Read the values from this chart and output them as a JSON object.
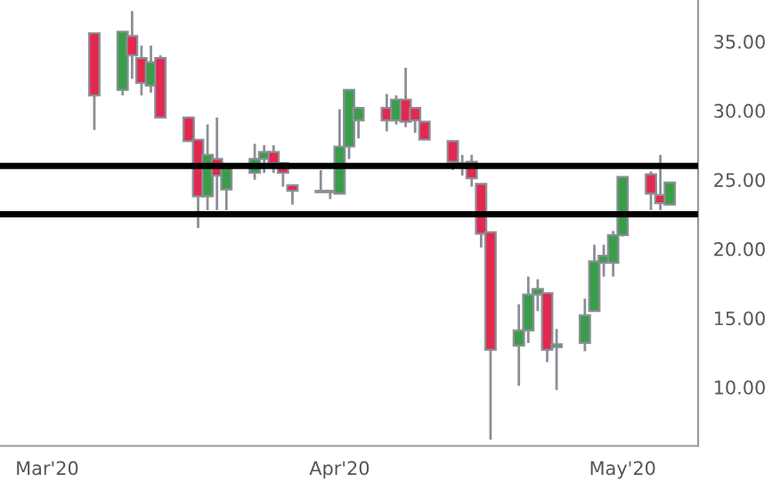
{
  "chart_data": {
    "type": "candlestick",
    "x": [
      "2020-03-06",
      "2020-03-09",
      "2020-03-10",
      "2020-03-11",
      "2020-03-12",
      "2020-03-13",
      "2020-03-16",
      "2020-03-17",
      "2020-03-18",
      "2020-03-19",
      "2020-03-20",
      "2020-03-23",
      "2020-03-24",
      "2020-03-25",
      "2020-03-26",
      "2020-03-27",
      "2020-03-30",
      "2020-03-31",
      "2020-04-01",
      "2020-04-02",
      "2020-04-03",
      "2020-04-06",
      "2020-04-07",
      "2020-04-08",
      "2020-04-09",
      "2020-04-10",
      "2020-04-13",
      "2020-04-14",
      "2020-04-15",
      "2020-04-16",
      "2020-04-17",
      "2020-04-20",
      "2020-04-21",
      "2020-04-22",
      "2020-04-23",
      "2020-04-24",
      "2020-04-27",
      "2020-04-28",
      "2020-04-29",
      "2020-04-30",
      "2020-05-01",
      "2020-05-04",
      "2020-05-05",
      "2020-05-06"
    ],
    "ohlc": [
      [
        35.6,
        35.6,
        28.6,
        31.1
      ],
      [
        31.5,
        35.7,
        31.1,
        35.7
      ],
      [
        35.4,
        37.2,
        32.3,
        34.0
      ],
      [
        33.8,
        34.7,
        31.1,
        32.0
      ],
      [
        31.8,
        34.7,
        31.3,
        33.5
      ],
      [
        33.8,
        34.0,
        29.5,
        29.5
      ],
      [
        29.5,
        29.5,
        27.8,
        27.8
      ],
      [
        27.9,
        27.9,
        21.5,
        23.8
      ],
      [
        23.8,
        29.0,
        22.8,
        26.8
      ],
      [
        26.5,
        29.5,
        22.8,
        25.3
      ],
      [
        24.3,
        26.1,
        22.8,
        26.1
      ],
      [
        25.5,
        27.6,
        25.0,
        26.5
      ],
      [
        26.5,
        27.5,
        25.5,
        27.0
      ],
      [
        27.0,
        27.5,
        25.5,
        26.2
      ],
      [
        26.2,
        26.2,
        24.5,
        25.5
      ],
      [
        24.6,
        24.6,
        23.2,
        24.2
      ],
      [
        24.1,
        25.7,
        24.1,
        24.2
      ],
      [
        24.1,
        24.2,
        23.6,
        24.2
      ],
      [
        24.0,
        30.1,
        24.0,
        27.4
      ],
      [
        27.4,
        31.5,
        26.5,
        31.5
      ],
      [
        29.3,
        30.2,
        28.0,
        30.2
      ],
      [
        30.2,
        31.2,
        28.5,
        29.3
      ],
      [
        29.3,
        31.1,
        29.0,
        30.8
      ],
      [
        30.8,
        33.1,
        28.8,
        29.2
      ],
      [
        30.2,
        30.2,
        28.4,
        29.3
      ],
      [
        29.2,
        29.2,
        27.9,
        27.9
      ],
      [
        27.8,
        27.8,
        25.7,
        26.3
      ],
      [
        26.0,
        26.8,
        25.3,
        26.2
      ],
      [
        26.3,
        26.8,
        24.5,
        25.1
      ],
      [
        24.7,
        24.7,
        20.1,
        21.1
      ],
      [
        21.2,
        21.2,
        6.2,
        12.7
      ],
      [
        13.0,
        16.0,
        10.1,
        14.1
      ],
      [
        14.1,
        18.0,
        13.2,
        16.7
      ],
      [
        16.7,
        17.8,
        15.5,
        17.1
      ],
      [
        16.8,
        16.8,
        11.8,
        12.7
      ],
      [
        12.9,
        14.2,
        9.8,
        13.1
      ],
      [
        13.2,
        16.4,
        12.6,
        15.2
      ],
      [
        15.5,
        20.3,
        15.5,
        19.1
      ],
      [
        19.0,
        20.3,
        18.0,
        19.5
      ],
      [
        19.0,
        21.3,
        18.0,
        21.0
      ],
      [
        21.0,
        25.2,
        20.9,
        25.2
      ],
      [
        25.4,
        25.6,
        22.8,
        24.0
      ],
      [
        23.9,
        26.8,
        22.8,
        23.3
      ],
      [
        23.2,
        24.8,
        23.2,
        24.8
      ]
    ],
    "colors": [
      "#e3284f",
      "#3a9d4a",
      "#e3284f",
      "#e3284f",
      "#3a9d4a",
      "#e3284f",
      "#e3284f",
      "#e3284f",
      "#3a9d4a",
      "#e3284f",
      "#3a9d4a",
      "#3a9d4a",
      "#3a9d4a",
      "#e3284f",
      "#e3284f",
      "#e3284f",
      "#3a9d4a",
      "#3a9d4a",
      "#3a9d4a",
      "#3a9d4a",
      "#3a9d4a",
      "#e3284f",
      "#3a9d4a",
      "#e3284f",
      "#e3284f",
      "#e3284f",
      "#e3284f",
      "#3a9d4a",
      "#e3284f",
      "#e3284f",
      "#e3284f",
      "#3a9d4a",
      "#3a9d4a",
      "#3a9d4a",
      "#e3284f",
      "#3a9d4a",
      "#3a9d4a",
      "#3a9d4a",
      "#3a9d4a",
      "#3a9d4a",
      "#3a9d4a",
      "#e3284f",
      "#e3284f",
      "#3a9d4a"
    ],
    "xlim": [
      "2020-02-25",
      "2020-05-09"
    ],
    "xticks": [
      {
        "value": "2020-03-01",
        "label": "Mar'20"
      },
      {
        "value": "2020-04-01",
        "label": "Apr'20"
      },
      {
        "value": "2020-05-01",
        "label": "May'20"
      }
    ],
    "ylim": [
      5.75,
      38
    ],
    "yticks": [
      {
        "value": 10,
        "label": "10.00"
      },
      {
        "value": 15,
        "label": "15.00"
      },
      {
        "value": 20,
        "label": "20.00"
      },
      {
        "value": 25,
        "label": "25.00"
      },
      {
        "value": 30,
        "label": "30.00"
      },
      {
        "value": 35,
        "label": "35.00"
      }
    ],
    "ref_lines": [
      {
        "axis": "y",
        "value": 26.0,
        "color": "#000000"
      },
      {
        "axis": "y",
        "value": 22.5,
        "color": "#000000"
      }
    ],
    "grid": false,
    "legend": false
  }
}
